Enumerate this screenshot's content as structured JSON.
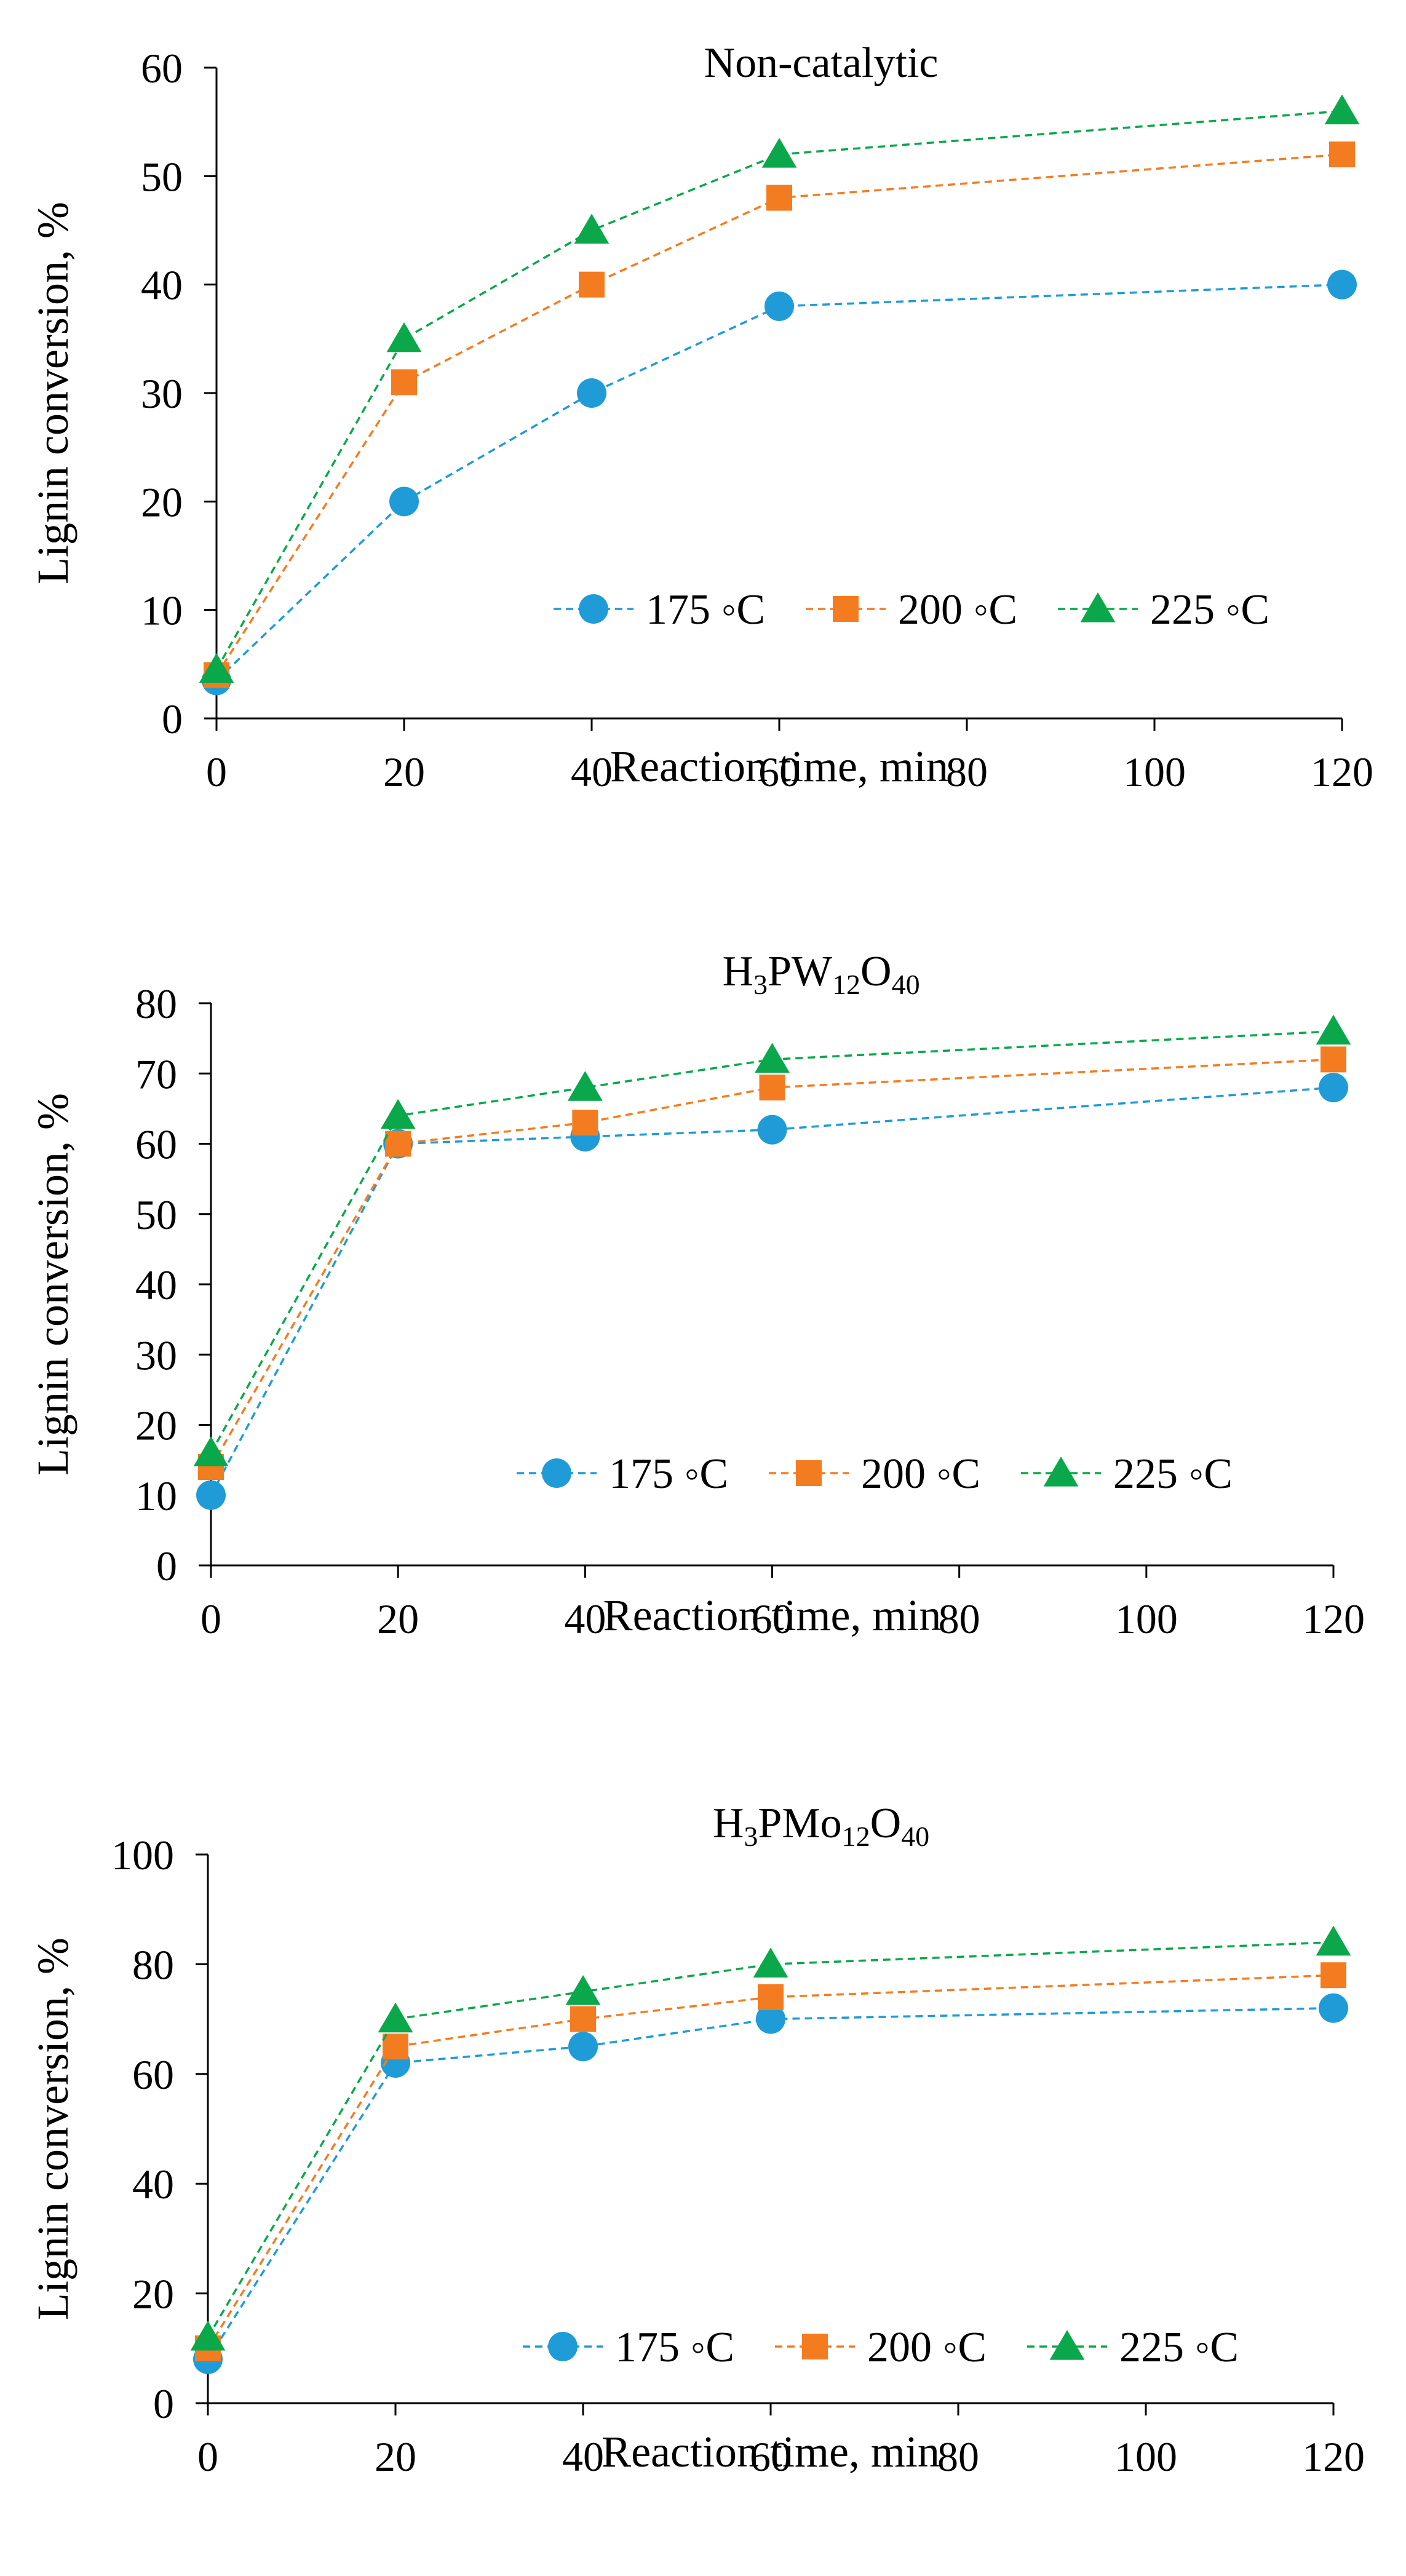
{
  "chart_data": [
    {
      "type": "line",
      "title": "Non-catalytic",
      "title_parts": [
        {
          "text": "Non-catalytic",
          "sub": false
        }
      ],
      "xlabel": "Reaction time, min",
      "ylabel": "Lignin conversion, %",
      "x": [
        0,
        20,
        40,
        60,
        120
      ],
      "xlim": [
        0,
        120
      ],
      "xticks": [
        0,
        20,
        40,
        60,
        80,
        100,
        120
      ],
      "ylim": [
        0,
        60
      ],
      "yticks": [
        0,
        10,
        20,
        30,
        40,
        50,
        60
      ],
      "grid": false,
      "legend_position": "inside-lower-right",
      "series": [
        {
          "name": "175 ◦C",
          "color": "#1f9bd7",
          "marker": "circle",
          "values": [
            3.5,
            20,
            30,
            38,
            40
          ]
        },
        {
          "name": "200 ◦C",
          "color": "#f47c20",
          "marker": "square",
          "values": [
            4,
            31,
            40,
            48,
            52
          ]
        },
        {
          "name": "225 ◦C",
          "color": "#0aa84a",
          "marker": "triangle",
          "values": [
            4.5,
            35,
            45,
            52,
            56
          ]
        }
      ]
    },
    {
      "type": "line",
      "title": "H3PW12O40",
      "title_parts": [
        {
          "text": "H",
          "sub": false
        },
        {
          "text": "3",
          "sub": true
        },
        {
          "text": "PW",
          "sub": false
        },
        {
          "text": "12",
          "sub": true
        },
        {
          "text": "O",
          "sub": false
        },
        {
          "text": "40",
          "sub": true
        }
      ],
      "xlabel": "Reaction time, min",
      "ylabel": "Lignin conversion, %",
      "x": [
        0,
        20,
        40,
        60,
        120
      ],
      "xlim": [
        0,
        120
      ],
      "xticks": [
        0,
        20,
        40,
        60,
        80,
        100,
        120
      ],
      "ylim": [
        0,
        80
      ],
      "yticks": [
        0,
        10,
        20,
        30,
        40,
        50,
        60,
        70,
        80
      ],
      "grid": false,
      "legend_position": "inside-lower-right",
      "series": [
        {
          "name": "175 ◦C",
          "color": "#1f9bd7",
          "marker": "circle",
          "values": [
            10,
            60,
            61,
            62,
            68
          ]
        },
        {
          "name": "200 ◦C",
          "color": "#f47c20",
          "marker": "square",
          "values": [
            14,
            60,
            63,
            68,
            72
          ]
        },
        {
          "name": "225 ◦C",
          "color": "#0aa84a",
          "marker": "triangle",
          "values": [
            16,
            64,
            68,
            72,
            76
          ]
        }
      ]
    },
    {
      "type": "line",
      "title": "H3PMo12O40",
      "title_parts": [
        {
          "text": "H",
          "sub": false
        },
        {
          "text": "3",
          "sub": true
        },
        {
          "text": "PMo",
          "sub": false
        },
        {
          "text": "12",
          "sub": true
        },
        {
          "text": "O",
          "sub": false
        },
        {
          "text": "40",
          "sub": true
        }
      ],
      "xlabel": "Reaction time, min",
      "ylabel": "Lignin conversion, %",
      "x": [
        0,
        20,
        40,
        60,
        120
      ],
      "xlim": [
        0,
        120
      ],
      "xticks": [
        0,
        20,
        40,
        60,
        80,
        100,
        120
      ],
      "ylim": [
        0,
        100
      ],
      "yticks": [
        0,
        20,
        40,
        60,
        80,
        100
      ],
      "grid": false,
      "legend_position": "inside-lower-right",
      "series": [
        {
          "name": "175 ◦C",
          "color": "#1f9bd7",
          "marker": "circle",
          "values": [
            8,
            62,
            65,
            70,
            72
          ]
        },
        {
          "name": "200 ◦C",
          "color": "#f47c20",
          "marker": "square",
          "values": [
            10,
            65,
            70,
            74,
            78
          ]
        },
        {
          "name": "225 ◦C",
          "color": "#0aa84a",
          "marker": "triangle",
          "values": [
            12,
            70,
            75,
            80,
            84
          ]
        }
      ]
    }
  ]
}
